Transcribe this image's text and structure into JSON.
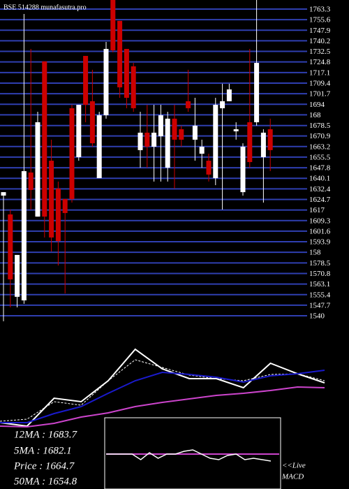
{
  "chart_data": {
    "type": "candlestick",
    "title": "BSE 514288  munafasutra.pro",
    "ylim": [
      1533.4,
      1769.9
    ],
    "yticks": [
      1763.3,
      1755.6,
      1747.9,
      1740.2,
      1732.5,
      1724.8,
      1717.1,
      1709.4,
      1701.7,
      1694,
      {
        "value": 1686.3,
        "label": "168"
      },
      1678.5,
      1670.9,
      1663.2,
      1655.5,
      1647.8,
      1640.1,
      1632.4,
      1624.7,
      1617,
      1609.3,
      1601.6,
      1593.9,
      {
        "value": 1586.2,
        "label": "158"
      },
      1578.5,
      1570.8,
      1563.1,
      1555.4,
      1547.7,
      1540
    ],
    "grid": true,
    "grid_color": "#2f3fb0",
    "up_color": "#ffffff",
    "down_color": "#cc0000",
    "open": [
      1627.5,
      1613.8,
      1553.8,
      1551.2,
      1644.3,
      1612.2,
      1725.2,
      1652.9,
      1632.6,
      1625.0,
      1691.1,
      1655.5,
      1729.2,
      1696.2,
      1640.2,
      1686.0,
      1769.9,
      1754.7,
      1734.3,
      1721.6,
      1660.6,
      1673.3,
      1663.1,
      1670.7,
      1647.8,
      1683.5,
      1675.8,
      1696.2,
      1668.2,
      1658.0,
      1652.9,
      1640.2,
      1691.1,
      1696.2,
      1674.3,
      1630.0,
      1680.9,
      1680.9,
      1655.5,
      1675.8
    ],
    "high": [
      1630.0,
      1617.3,
      1584.3,
      1759.7,
      1734.3,
      1688.5,
      1725.2,
      1668.2,
      1637.7,
      1625.0,
      1693.6,
      1693.6,
      1729.2,
      1719.1,
      1688.5,
      1739.4,
      1769.9,
      1754.7,
      1734.3,
      1724.1,
      1688.5,
      1693.6,
      1693.6,
      1693.6,
      1688.5,
      1693.6,
      1678.4,
      1719.1,
      1698.7,
      1668.2,
      1658.0,
      1698.7,
      1708.9,
      1708.9,
      1680.9,
      1665.6,
      1734.3,
      1769.9,
      1675.8,
      1683.5
    ],
    "low": [
      1536.0,
      1546.1,
      1546.1,
      1548.7,
      1617.3,
      1612.2,
      1597.0,
      1586.8,
      1576.6,
      1556.3,
      1622.4,
      1652.9,
      1680.9,
      1663.1,
      1640.2,
      1683.5,
      1731.8,
      1698.7,
      1691.1,
      1688.5,
      1647.8,
      1647.8,
      1637.7,
      1637.7,
      1637.7,
      1632.6,
      1663.1,
      1688.5,
      1652.9,
      1647.8,
      1637.7,
      1635.1,
      1617.3,
      1696.2,
      1668.2,
      1627.5,
      1647.8,
      1678.4,
      1622.4,
      1645.3
    ],
    "close": [
      1630.0,
      1566.5,
      1584.3,
      1645.3,
      1631.6,
      1680.9,
      1612.2,
      1597.0,
      1594.4,
      1614.8,
      1625.0,
      1693.6,
      1693.6,
      1665.6,
      1686.0,
      1734.3,
      1733.3,
      1706.3,
      1698.7,
      1691.1,
      1673.3,
      1663.1,
      1673.3,
      1686.0,
      1683.5,
      1668.2,
      1668.2,
      1691.1,
      1678.4,
      1663.1,
      1642.8,
      1693.6,
      1696.2,
      1704.8,
      1675.8,
      1663.1,
      1651.9,
      1724.1,
      1673.3,
      1660.6
    ],
    "indicator": {
      "ylim": [
        0,
        130
      ],
      "series": [
        {
          "color": "#ffffff",
          "values": [
            15,
            10,
            50,
            45,
            75,
            120,
            92,
            78,
            78,
            65,
            100,
            85,
            72
          ]
        },
        {
          "color": "#ffffff",
          "dashed": true,
          "values": [
            17,
            20,
            45,
            40,
            75,
            105,
            94,
            83,
            78,
            75,
            84,
            85,
            75
          ]
        },
        {
          "color": "#1a1acc",
          "values": [
            15,
            15,
            28,
            38,
            57,
            75,
            87,
            84,
            80,
            73,
            82,
            85,
            90
          ]
        },
        {
          "color": "#cc44cc",
          "values": [
            10,
            9,
            14,
            23,
            29,
            38,
            44,
            49,
            54,
            57,
            61,
            66,
            65
          ]
        }
      ]
    },
    "macd": {
      "ylim": [
        -50,
        50
      ],
      "color": "#ffffff",
      "signal_color": "#cc44cc",
      "values": [
        0,
        0,
        0,
        0,
        -8,
        2,
        -6,
        0,
        0,
        4,
        6,
        0,
        -6,
        -8,
        -2,
        0,
        -8,
        -6,
        -8,
        -10
      ]
    },
    "legend": [
      "12MA : 1683.7",
      "5MA : 1682.1",
      "Price  : 1664.7",
      "50MA : 1654.8"
    ],
    "live": "<<Live",
    "macd_label": "MACD"
  }
}
